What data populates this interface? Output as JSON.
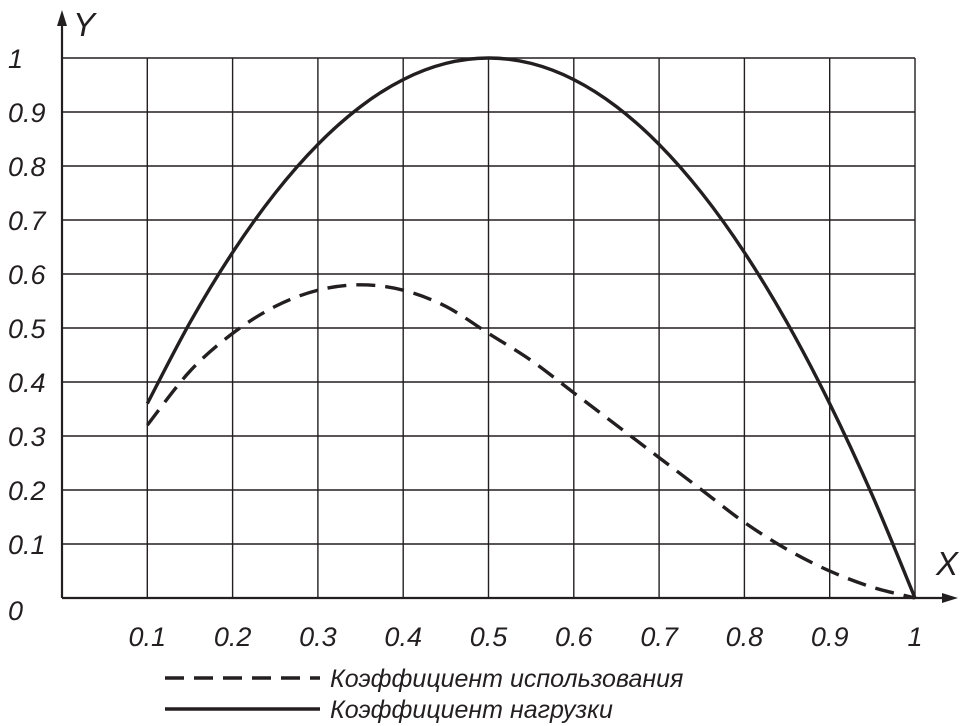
{
  "chart_data": {
    "type": "line",
    "xlabel": "X",
    "ylabel": "Y",
    "xlim": [
      0,
      1
    ],
    "ylim": [
      0,
      1
    ],
    "x_ticks": [
      "0.1",
      "0.2",
      "0.3",
      "0.4",
      "0.5",
      "0.6",
      "0.7",
      "0.8",
      "0.9",
      "1"
    ],
    "y_ticks": [
      "0",
      "0.1",
      "0.2",
      "0.3",
      "0.4",
      "0.5",
      "0.6",
      "0.7",
      "0.8",
      "0.9",
      "1"
    ],
    "grid": true,
    "legend_position": "bottom-center",
    "series": [
      {
        "name": "Коэффициент использования",
        "style": "dashed",
        "color": "#231f20",
        "x": [
          0.1,
          0.15,
          0.2,
          0.25,
          0.3,
          0.35,
          0.4,
          0.45,
          0.5,
          0.55,
          0.6,
          0.65,
          0.7,
          0.75,
          0.8,
          0.85,
          0.9,
          0.95,
          1.0
        ],
        "y": [
          0.32,
          0.42,
          0.49,
          0.54,
          0.57,
          0.58,
          0.57,
          0.54,
          0.49,
          0.44,
          0.38,
          0.32,
          0.26,
          0.2,
          0.14,
          0.09,
          0.05,
          0.02,
          0.0
        ]
      },
      {
        "name": "Коэффициент нагрузки",
        "style": "solid",
        "color": "#231f20",
        "x": [
          0.1,
          0.15,
          0.2,
          0.25,
          0.3,
          0.35,
          0.4,
          0.45,
          0.5,
          0.55,
          0.6,
          0.65,
          0.7,
          0.75,
          0.8,
          0.85,
          0.9,
          0.95,
          1.0
        ],
        "y": [
          0.36,
          0.51,
          0.64,
          0.75,
          0.84,
          0.91,
          0.96,
          0.99,
          1.0,
          0.99,
          0.96,
          0.91,
          0.84,
          0.75,
          0.64,
          0.51,
          0.36,
          0.19,
          0.0
        ]
      }
    ]
  }
}
